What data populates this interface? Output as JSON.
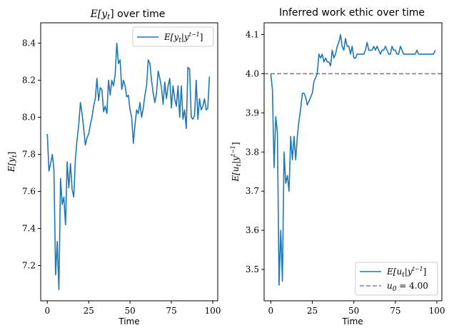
{
  "chart_data": [
    {
      "type": "line",
      "title": "E[yt] over time",
      "title_parts": {
        "pre": "E[y",
        "sub": "t",
        "post": "] over time"
      },
      "xlabel": "Time",
      "ylabel": "E[yt]",
      "ylabel_parts": {
        "pre": "E[y",
        "sub": "t",
        "post": "]"
      },
      "xlim": [
        -4,
        103
      ],
      "ylim": [
        7.01,
        8.51
      ],
      "xticks": [
        0,
        25,
        50,
        75,
        100
      ],
      "yticks": [
        7.2,
        7.4,
        7.6,
        7.8,
        8.0,
        8.2,
        8.4
      ],
      "legend": "top-right",
      "grid": false,
      "series": [
        {
          "name": "E[yt|y^(t-1)]",
          "color": "#1f77b4",
          "x": [
            0,
            1,
            2,
            3,
            4,
            5,
            6,
            7,
            8,
            9,
            10,
            11,
            12,
            13,
            14,
            15,
            16,
            17,
            18,
            19,
            20,
            21,
            22,
            23,
            24,
            25,
            26,
            27,
            28,
            29,
            30,
            31,
            32,
            33,
            34,
            35,
            36,
            37,
            38,
            39,
            40,
            41,
            42,
            43,
            44,
            45,
            46,
            47,
            48,
            49,
            50,
            51,
            52,
            53,
            54,
            55,
            56,
            57,
            58,
            59,
            60,
            61,
            62,
            63,
            64,
            65,
            66,
            67,
            68,
            69,
            70,
            71,
            72,
            73,
            74,
            75,
            76,
            77,
            78,
            79,
            80,
            81,
            82,
            83,
            84,
            85,
            86,
            87,
            88,
            89,
            90,
            91,
            92,
            93,
            94,
            95,
            96,
            97,
            98
          ],
          "y": [
            7.91,
            7.71,
            7.75,
            7.8,
            7.72,
            7.15,
            7.33,
            7.07,
            7.67,
            7.53,
            7.57,
            7.42,
            7.76,
            7.62,
            7.75,
            7.61,
            7.57,
            7.78,
            7.88,
            7.96,
            8.08,
            8.02,
            7.94,
            7.85,
            7.89,
            7.91,
            7.96,
            8.0,
            8.06,
            8.1,
            8.21,
            8.09,
            8.16,
            8.15,
            8.03,
            8.06,
            8.02,
            8.2,
            8.12,
            8.2,
            8.17,
            8.23,
            8.4,
            8.29,
            8.31,
            8.15,
            8.2,
            8.17,
            8.11,
            8.12,
            8.04,
            8.0,
            7.86,
            7.96,
            8.04,
            8.02,
            8.08,
            8.0,
            8.05,
            8.12,
            8.17,
            8.31,
            8.29,
            8.2,
            8.13,
            8.08,
            8.13,
            8.25,
            8.21,
            8.16,
            8.07,
            8.19,
            8.1,
            8.17,
            8.21,
            8.05,
            8.17,
            8.1,
            8.06,
            8.17,
            8.0,
            8.17,
            7.99,
            8.04,
            7.94,
            8.27,
            8.26,
            8.0,
            7.99,
            8.01,
            8.2,
            7.99,
            8.1,
            8.04,
            8.06,
            8.1,
            8.04,
            8.05,
            8.22
          ]
        }
      ]
    },
    {
      "type": "line",
      "title": "Inferred work ethic over time",
      "xlabel": "Time",
      "ylabel": "E[ut|y^(t-1)]",
      "xlim": [
        -4,
        103
      ],
      "ylim": [
        3.42,
        4.13
      ],
      "xticks": [
        0,
        25,
        50,
        75,
        100
      ],
      "yticks": [
        3.5,
        3.6,
        3.7,
        3.8,
        3.9,
        4.0,
        4.1
      ],
      "legend": "bottom-right",
      "grid": false,
      "series": [
        {
          "name": "E[ut|y^(t-1)]",
          "color": "#1f77b4",
          "x": [
            0,
            1,
            2,
            3,
            4,
            5,
            6,
            7,
            8,
            9,
            10,
            11,
            12,
            13,
            14,
            15,
            16,
            17,
            18,
            19,
            20,
            21,
            22,
            23,
            24,
            25,
            26,
            27,
            28,
            29,
            30,
            31,
            32,
            33,
            34,
            35,
            36,
            37,
            38,
            39,
            40,
            41,
            42,
            43,
            44,
            45,
            46,
            47,
            48,
            49,
            50,
            51,
            52,
            53,
            54,
            55,
            56,
            57,
            58,
            59,
            60,
            61,
            62,
            63,
            64,
            65,
            66,
            67,
            68,
            69,
            70,
            71,
            72,
            73,
            74,
            75,
            76,
            77,
            78,
            79,
            80,
            81,
            82,
            83,
            84,
            85,
            86,
            87,
            88,
            89,
            90,
            91,
            92,
            93,
            94,
            95,
            96,
            97,
            98,
            99
          ],
          "y": [
            4.0,
            3.96,
            3.76,
            3.89,
            3.85,
            3.46,
            3.6,
            3.47,
            3.8,
            3.72,
            3.74,
            3.7,
            3.84,
            3.78,
            3.84,
            3.78,
            3.84,
            3.88,
            3.91,
            3.95,
            3.95,
            3.94,
            3.92,
            3.93,
            3.94,
            3.95,
            3.98,
            3.99,
            4.0,
            4.05,
            4.04,
            4.05,
            4.03,
            4.04,
            4.03,
            4.03,
            4.02,
            4.06,
            4.04,
            4.05,
            4.07,
            4.08,
            4.1,
            4.07,
            4.06,
            4.09,
            4.07,
            4.07,
            4.05,
            4.07,
            4.04,
            4.04,
            4.05,
            4.05,
            4.05,
            4.05,
            4.05,
            4.06,
            4.08,
            4.06,
            4.06,
            4.06,
            4.07,
            4.06,
            4.07,
            4.06,
            4.05,
            4.06,
            4.06,
            4.07,
            4.06,
            4.05,
            4.05,
            4.07,
            4.06,
            4.06,
            4.05,
            4.05,
            4.07,
            4.06,
            4.05,
            4.05,
            4.05,
            4.05,
            4.05,
            4.05,
            4.05,
            4.05,
            4.06,
            4.05,
            4.05,
            4.05,
            4.05,
            4.05,
            4.05,
            4.05,
            4.05,
            4.05,
            4.05,
            4.06
          ]
        },
        {
          "name": "u0 = 4.00",
          "color": "#808080",
          "style": "dashed",
          "y_const": 4.0
        }
      ]
    }
  ],
  "labels": {
    "left_legend": {
      "pre": "E[y",
      "sub": "t",
      "mid": "|y",
      "sup": "t−1",
      "post": "]"
    },
    "right_ylabel": {
      "pre": "E[u",
      "sub": "t",
      "mid": "|y",
      "sup": "t−1",
      "post": "]"
    },
    "right_legend_1": {
      "pre": "E[u",
      "sub": "t",
      "mid": "|y",
      "sup": "t−1",
      "post": "]"
    },
    "right_legend_2": {
      "pre": "u",
      "sub": "0",
      "post": " = 4.00"
    }
  }
}
